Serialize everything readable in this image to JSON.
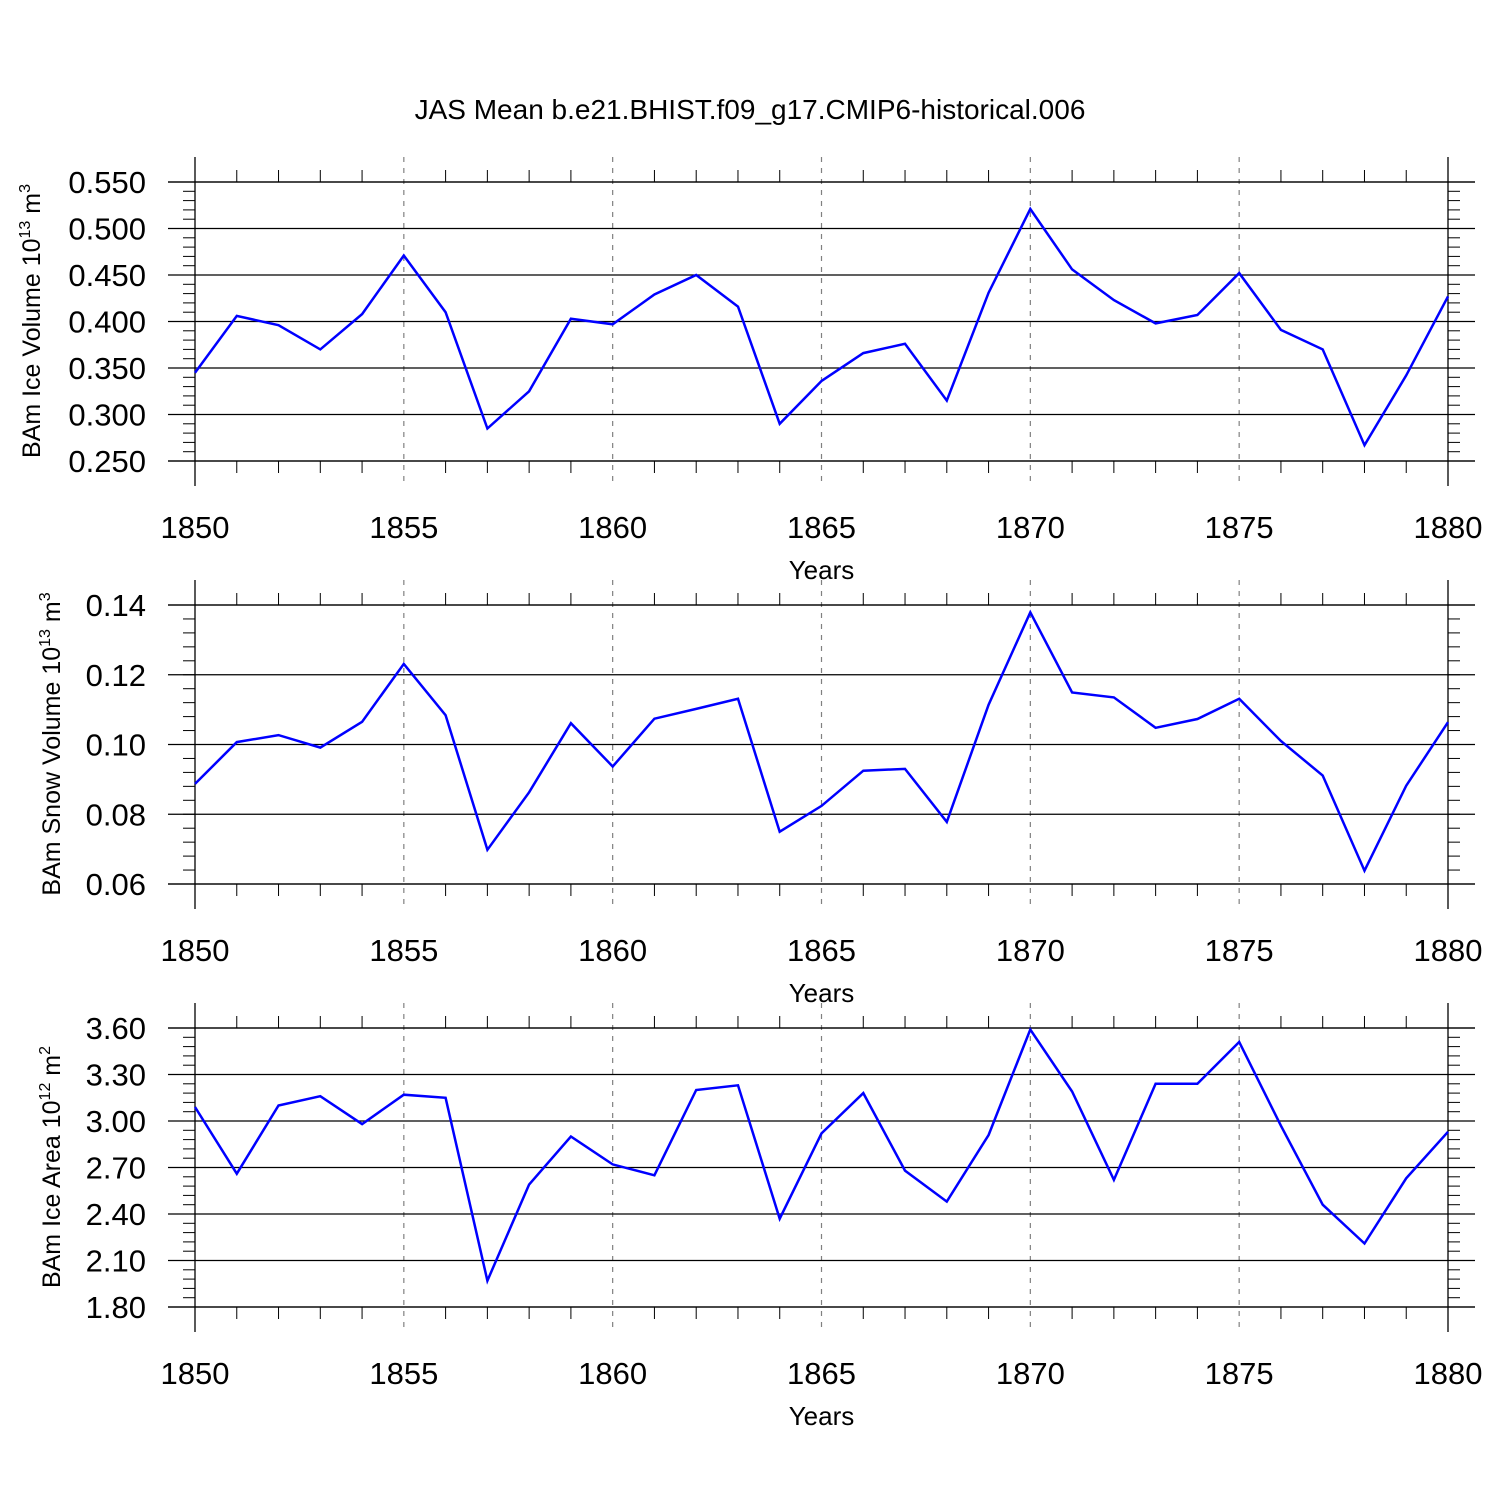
{
  "title": "JAS Mean b.e21.BHIST.f09_g17.CMIP6-historical.006",
  "colors": {
    "line": "#0000ff",
    "axis": "#000000",
    "grid": "#808080"
  },
  "chart_data": [
    {
      "type": "line",
      "title": "",
      "xlabel": "Years",
      "ylabel": {
        "base": "BAm Ice Volume 10",
        "exp": "13",
        "unit": " m",
        "unit_exp": "3"
      },
      "xlim": [
        1850,
        1880
      ],
      "ylim": [
        0.25,
        0.55
      ],
      "x_ticks": [
        1850,
        1855,
        1860,
        1865,
        1870,
        1875,
        1880
      ],
      "x_tick_labels": [
        "1850",
        "1855",
        "1860",
        "1865",
        "1870",
        "1875",
        "1880"
      ],
      "y_ticks": [
        0.25,
        0.3,
        0.35,
        0.4,
        0.45,
        0.5,
        0.55
      ],
      "y_tick_labels": [
        "0.250",
        "0.300",
        "0.350",
        "0.400",
        "0.450",
        "0.500",
        "0.550"
      ],
      "y_minor_step": 0.01,
      "grid_x": [
        1855,
        1860,
        1865,
        1870,
        1875
      ],
      "series": [
        {
          "name": "BAm Ice Volume",
          "x": [
            1850,
            1851,
            1852,
            1853,
            1854,
            1855,
            1856,
            1857,
            1858,
            1859,
            1860,
            1861,
            1862,
            1863,
            1864,
            1865,
            1866,
            1867,
            1868,
            1869,
            1870,
            1871,
            1872,
            1873,
            1874,
            1875,
            1876,
            1877,
            1878,
            1879,
            1880
          ],
          "values": [
            0.345,
            0.406,
            0.396,
            0.37,
            0.408,
            0.471,
            0.41,
            0.285,
            0.325,
            0.403,
            0.397,
            0.429,
            0.45,
            0.416,
            0.29,
            0.336,
            0.366,
            0.376,
            0.315,
            0.431,
            0.521,
            0.456,
            0.423,
            0.398,
            0.407,
            0.452,
            0.391,
            0.37,
            0.267,
            0.342,
            0.427
          ]
        }
      ]
    },
    {
      "type": "line",
      "title": "",
      "xlabel": "Years",
      "ylabel": {
        "base": "BAm Snow Volume 10",
        "exp": "13",
        "unit": " m",
        "unit_exp": "3"
      },
      "xlim": [
        1850,
        1880
      ],
      "ylim": [
        0.06,
        0.14
      ],
      "x_ticks": [
        1850,
        1855,
        1860,
        1865,
        1870,
        1875,
        1880
      ],
      "x_tick_labels": [
        "1850",
        "1855",
        "1860",
        "1865",
        "1870",
        "1875",
        "1880"
      ],
      "y_ticks": [
        0.06,
        0.08,
        0.1,
        0.12,
        0.14
      ],
      "y_tick_labels": [
        "0.06",
        "0.08",
        "0.10",
        "0.12",
        "0.14"
      ],
      "y_minor_step": 0.004,
      "grid_x": [
        1855,
        1860,
        1865,
        1870,
        1875
      ],
      "series": [
        {
          "name": "BAm Snow Volume",
          "x": [
            1850,
            1851,
            1852,
            1853,
            1854,
            1855,
            1856,
            1857,
            1858,
            1859,
            1860,
            1861,
            1862,
            1863,
            1864,
            1865,
            1866,
            1867,
            1868,
            1869,
            1870,
            1871,
            1872,
            1873,
            1874,
            1875,
            1876,
            1877,
            1878,
            1879,
            1880
          ],
          "values": [
            0.0887,
            0.1007,
            0.1027,
            0.0991,
            0.1065,
            0.1231,
            0.1084,
            0.0698,
            0.0863,
            0.1061,
            0.0937,
            0.1074,
            0.1102,
            0.1131,
            0.075,
            0.0824,
            0.0925,
            0.093,
            0.0778,
            0.1114,
            0.1379,
            0.1149,
            0.1135,
            0.1048,
            0.1073,
            0.1131,
            0.101,
            0.0911,
            0.0638,
            0.0882,
            0.1064
          ]
        }
      ]
    },
    {
      "type": "line",
      "title": "",
      "xlabel": "Years",
      "ylabel": {
        "base": "BAm Ice Area 10",
        "exp": "12",
        "unit": " m",
        "unit_exp": "2"
      },
      "xlim": [
        1850,
        1880
      ],
      "ylim": [
        1.8,
        3.6
      ],
      "x_ticks": [
        1850,
        1855,
        1860,
        1865,
        1870,
        1875,
        1880
      ],
      "x_tick_labels": [
        "1850",
        "1855",
        "1860",
        "1865",
        "1870",
        "1875",
        "1880"
      ],
      "y_ticks": [
        1.8,
        2.1,
        2.4,
        2.7,
        3.0,
        3.3,
        3.6
      ],
      "y_tick_labels": [
        "1.80",
        "2.10",
        "2.40",
        "2.70",
        "3.00",
        "3.30",
        "3.60"
      ],
      "y_minor_step": 0.06,
      "grid_x": [
        1855,
        1860,
        1865,
        1870,
        1875
      ],
      "series": [
        {
          "name": "BAm Ice Area",
          "x": [
            1850,
            1851,
            1852,
            1853,
            1854,
            1855,
            1856,
            1857,
            1858,
            1859,
            1860,
            1861,
            1862,
            1863,
            1864,
            1865,
            1866,
            1867,
            1868,
            1869,
            1870,
            1871,
            1872,
            1873,
            1874,
            1875,
            1876,
            1877,
            1878,
            1879,
            1880
          ],
          "values": [
            3.09,
            2.66,
            3.1,
            3.16,
            2.98,
            3.17,
            3.15,
            1.97,
            2.59,
            2.9,
            2.72,
            2.65,
            3.2,
            3.23,
            2.37,
            2.92,
            3.18,
            2.68,
            2.48,
            2.91,
            3.59,
            3.19,
            2.62,
            3.24,
            3.24,
            3.51,
            2.97,
            2.46,
            2.21,
            2.63,
            2.93
          ]
        }
      ]
    }
  ]
}
